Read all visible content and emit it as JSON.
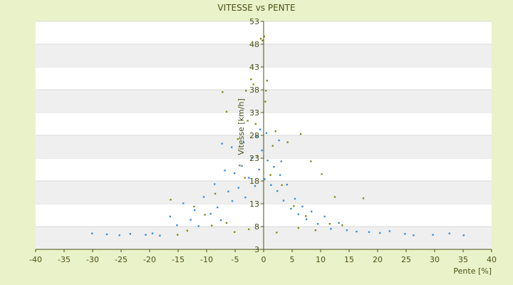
{
  "chart_data": {
    "type": "scatter",
    "title": "VITESSE vs PENTE",
    "xlabel": "Pente [%]",
    "ylabel": "Vitesse [km/h]",
    "xlim": [
      -40,
      40
    ],
    "ylim": [
      3,
      53
    ],
    "xticks": [
      -40,
      -35,
      -30,
      -25,
      -20,
      -15,
      -10,
      -5,
      0,
      5,
      10,
      15,
      20,
      25,
      30,
      35,
      40
    ],
    "yticks": [
      3,
      8,
      13,
      18,
      23,
      28,
      33,
      38,
      43,
      48,
      53
    ],
    "grid": "horizontal alternating bands",
    "legend": "none",
    "colors": {
      "background": "#eaf2c9",
      "plot_area": "#ffffff",
      "band": "#efefef",
      "series_blue": "#3a8fd9",
      "series_olive": "#8a8a1e",
      "axis": "#4b5016"
    },
    "series": [
      {
        "color": "#8a8a1e",
        "points": [
          [
            -7.2,
            37.5
          ],
          [
            -6.5,
            33.2
          ],
          [
            -3.1,
            37.8
          ],
          [
            -2.2,
            40.3
          ],
          [
            -1.8,
            39.2
          ],
          [
            -0.5,
            49.2
          ],
          [
            -0.2,
            48.8
          ],
          [
            0.1,
            49.7
          ],
          [
            0.6,
            40.0
          ],
          [
            0.4,
            37.8
          ],
          [
            0.3,
            35.4
          ],
          [
            -2.8,
            31.2
          ],
          [
            -1.4,
            30.5
          ],
          [
            2.1,
            28.9
          ],
          [
            6.5,
            28.3
          ],
          [
            -4.5,
            27.2
          ],
          [
            4.2,
            26.5
          ],
          [
            8.3,
            22.3
          ],
          [
            10.2,
            19.5
          ],
          [
            12.5,
            14.5
          ],
          [
            17.5,
            14.2
          ],
          [
            -12.2,
            12.4
          ],
          [
            -16.3,
            13.9
          ],
          [
            -10.3,
            10.6
          ],
          [
            -9.1,
            8.2
          ],
          [
            -13.4,
            7.1
          ],
          [
            -6.5,
            8.8
          ],
          [
            -5.1,
            6.8
          ],
          [
            -2.6,
            7.4
          ],
          [
            2.3,
            6.7
          ],
          [
            6.1,
            7.7
          ],
          [
            9.1,
            7.2
          ],
          [
            11.6,
            8.6
          ],
          [
            13.8,
            8.3
          ],
          [
            -8.5,
            15.2
          ],
          [
            -4.2,
            21.4
          ],
          [
            -3.3,
            18.7
          ],
          [
            1.2,
            19.3
          ],
          [
            3.2,
            17.1
          ],
          [
            5.3,
            12.5
          ],
          [
            7.4,
            10.3
          ],
          [
            -15.1,
            6.2
          ],
          [
            -1.1,
            23.5
          ],
          [
            1.6,
            25.7
          ]
        ]
      },
      {
        "color": "#3a8fd9",
        "points": [
          [
            -30.1,
            6.5
          ],
          [
            -27.5,
            6.3
          ],
          [
            -25.3,
            6.1
          ],
          [
            -23.4,
            6.4
          ],
          [
            -20.7,
            6.2
          ],
          [
            -19.5,
            6.5
          ],
          [
            -18.2,
            6.0
          ],
          [
            -16.4,
            10.2
          ],
          [
            -15.2,
            8.3
          ],
          [
            -14.1,
            13.1
          ],
          [
            -12.8,
            9.5
          ],
          [
            -12.1,
            11.6
          ],
          [
            -11.4,
            8.1
          ],
          [
            -10.5,
            14.5
          ],
          [
            -9.3,
            10.8
          ],
          [
            -8.6,
            17.3
          ],
          [
            -8.1,
            12.2
          ],
          [
            -7.5,
            9.4
          ],
          [
            -6.8,
            20.3
          ],
          [
            -6.2,
            15.7
          ],
          [
            -5.5,
            13.6
          ],
          [
            -5.1,
            19.7
          ],
          [
            -4.4,
            16.5
          ],
          [
            -3.8,
            21.3
          ],
          [
            -3.2,
            14.4
          ],
          [
            -2.6,
            18.7
          ],
          [
            -2.1,
            23.1
          ],
          [
            -1.5,
            16.9
          ],
          [
            -0.8,
            20.5
          ],
          [
            -0.3,
            24.7
          ],
          [
            0.2,
            18.4
          ],
          [
            0.7,
            22.5
          ],
          [
            1.3,
            17.1
          ],
          [
            1.8,
            21.1
          ],
          [
            2.4,
            15.8
          ],
          [
            2.9,
            19.3
          ],
          [
            3.5,
            13.7
          ],
          [
            4.1,
            17.2
          ],
          [
            4.8,
            11.9
          ],
          [
            5.5,
            14.1
          ],
          [
            6.1,
            10.7
          ],
          [
            6.8,
            12.4
          ],
          [
            7.5,
            9.6
          ],
          [
            8.4,
            11.3
          ],
          [
            9.5,
            8.6
          ],
          [
            10.7,
            10.2
          ],
          [
            11.8,
            7.5
          ],
          [
            13.2,
            8.8
          ],
          [
            14.6,
            7.2
          ],
          [
            16.3,
            6.9
          ],
          [
            18.5,
            6.8
          ],
          [
            20.4,
            6.6
          ],
          [
            22.1,
            7.0
          ],
          [
            24.8,
            6.4
          ],
          [
            26.3,
            6.1
          ],
          [
            29.7,
            6.2
          ],
          [
            32.6,
            6.5
          ],
          [
            35.1,
            6.1
          ],
          [
            -3.5,
            26.5
          ],
          [
            -1.2,
            27.8
          ],
          [
            0.5,
            28.5
          ],
          [
            3.1,
            22.3
          ],
          [
            -5.6,
            25.4
          ],
          [
            -7.3,
            26.2
          ],
          [
            2.7,
            26.9
          ],
          [
            -0.6,
            29.3
          ]
        ]
      }
    ]
  }
}
